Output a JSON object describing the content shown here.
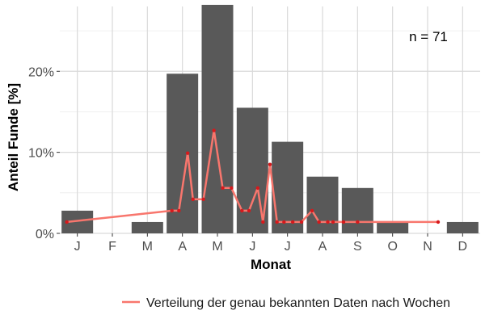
{
  "chart_data": {
    "type": "bar",
    "xlabel": "Monat",
    "ylabel": "Anteil Funde [%]",
    "ylim": [
      0,
      28
    ],
    "y_ticks": [
      0,
      10,
      20
    ],
    "y_tick_labels": [
      "0%",
      "10%",
      "20%"
    ],
    "categories": [
      "J",
      "F",
      "M",
      "A",
      "M",
      "J",
      "J",
      "A",
      "S",
      "O",
      "N",
      "D"
    ],
    "values": [
      2.8,
      0,
      1.4,
      19.7,
      28.2,
      15.5,
      11.3,
      7.0,
      5.6,
      1.4,
      0,
      1.4
    ],
    "annotation": "n = 71",
    "grid": true,
    "legend_position": "bottom-right",
    "bar_color": "#595959",
    "series": [
      {
        "name": "Verteilung der genau bekannten Daten nach Wochen",
        "type": "line",
        "color": "#f8766d",
        "marker_color": "#d7191c",
        "x": [
          0.7,
          3.7,
          3.9,
          4.15,
          4.3,
          4.6,
          4.9,
          5.15,
          5.4,
          5.7,
          5.9,
          6.15,
          6.3,
          6.5,
          6.7,
          6.9,
          7.15,
          7.4,
          7.7,
          7.9,
          8.15,
          8.3,
          8.6,
          9.0,
          11.3
        ],
        "y": [
          1.4,
          2.8,
          2.8,
          9.9,
          4.2,
          4.2,
          12.7,
          5.6,
          5.6,
          2.8,
          2.8,
          5.6,
          1.4,
          8.5,
          1.4,
          1.4,
          1.4,
          1.4,
          2.8,
          1.4,
          1.4,
          1.4,
          1.4,
          1.4,
          1.4
        ]
      }
    ]
  }
}
